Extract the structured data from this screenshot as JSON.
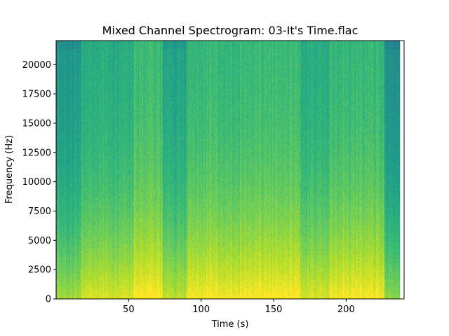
{
  "chart_data": {
    "type": "heatmap",
    "subtype": "spectrogram",
    "title": "Mixed Channel Spectrogram: 03-It's Time.flac",
    "xlabel": "Time (s)",
    "ylabel": "Frequency (Hz)",
    "xlim": [
      0,
      240
    ],
    "ylim": [
      0,
      22050
    ],
    "xticks": [
      50,
      100,
      150,
      200
    ],
    "yticks": [
      0,
      2500,
      5000,
      7500,
      10000,
      12500,
      15000,
      17500,
      20000
    ],
    "data_extent_seconds": [
      0,
      237
    ],
    "colormap": "viridis",
    "grid": false,
    "sections": [
      {
        "start": 0,
        "end": 17,
        "level": 0.38
      },
      {
        "start": 17,
        "end": 53,
        "level": 0.5
      },
      {
        "start": 53,
        "end": 73,
        "level": 0.6
      },
      {
        "start": 73,
        "end": 90,
        "level": 0.44
      },
      {
        "start": 90,
        "end": 126,
        "level": 0.58
      },
      {
        "start": 126,
        "end": 168,
        "level": 0.6
      },
      {
        "start": 168,
        "end": 188,
        "level": 0.5
      },
      {
        "start": 188,
        "end": 200,
        "level": 0.58
      },
      {
        "start": 200,
        "end": 226,
        "level": 0.58
      },
      {
        "start": 226,
        "end": 237,
        "level": 0.32
      }
    ]
  }
}
